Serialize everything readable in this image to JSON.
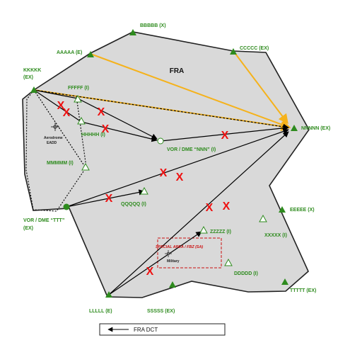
{
  "area_label": "FRA",
  "legend": {
    "text": "FRA DCT"
  },
  "airspace_inner_label": "Aerodrome\nEADD",
  "special_area": {
    "label": "SPECIAL AREA / FBZ (SA)",
    "sublabel": "Military"
  },
  "points": {
    "BBBBB": "BBBBB (X)",
    "AAAAA": "AAAAA (E)",
    "CCCCC": "CCCCC (EX)",
    "KKKKK_1": "KKKKK",
    "KKKKK_2": "(EX)",
    "FFFFF": "FFFFF (I)",
    "HHHHH": "HHHHH (I)",
    "MMMMM": "MMMMM (I)",
    "VOR_NNN": "VOR / DME “NNN” (I)",
    "NNNNN": "NNNNN (EX)",
    "VOR_TTT_1": "VOR / DME “TTT”",
    "VOR_TTT_2": "(EX)",
    "QQQQQ": "QQQQQ (I)",
    "EEEEE": "EEEEE (X)",
    "XXXXX": "XXXXX (I)",
    "ZZZZZ": "ZZZZZ (I)",
    "DDDDD": "DDDDD (I)",
    "TTTTT": "TTTTT (EX)",
    "LLLLL": "LLLLL (E)",
    "SSSSS": "SSSSS (EX)"
  },
  "colors": {
    "area_fill": "#d9d9d9",
    "point_green": "#2e8b1e",
    "route_orange": "#f5b21b",
    "x_red": "#ee1111",
    "special_red": "#cc1111"
  }
}
